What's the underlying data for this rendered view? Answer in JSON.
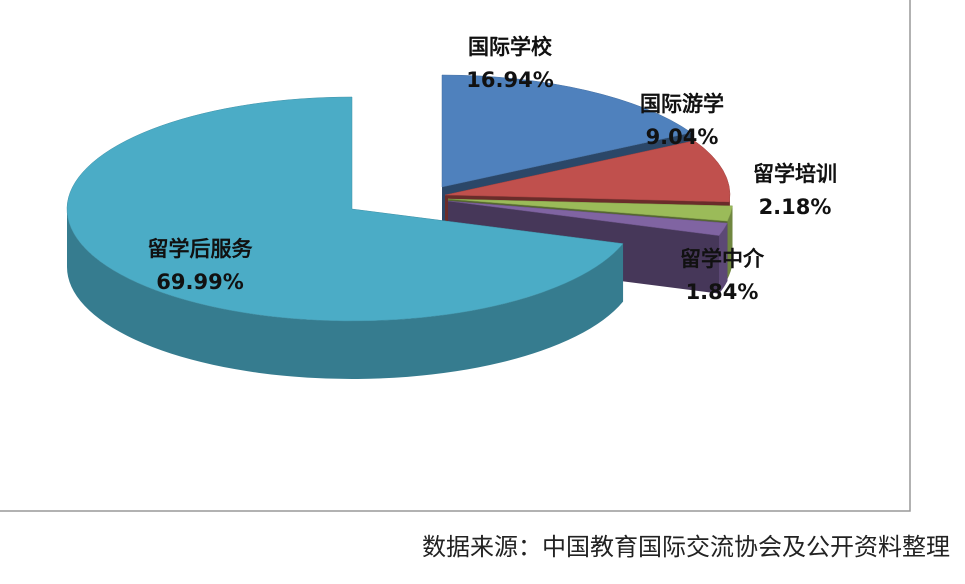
{
  "chart_data": {
    "type": "pie",
    "source": "数据来源：中国教育国际交流协会及公开资料整理",
    "categories": [
      "国际学校",
      "国际游学",
      "留学培训",
      "留学中介",
      "留学后服务"
    ],
    "values": [
      16.94,
      9.04,
      2.18,
      1.84,
      69.99
    ],
    "value_labels": [
      "16.94%",
      "9.04%",
      "2.18%",
      "1.84%",
      "69.99%"
    ],
    "colors": [
      "#4f81bd",
      "#c0504d",
      "#9bbb59",
      "#8064a2",
      "#4bacc6"
    ]
  }
}
